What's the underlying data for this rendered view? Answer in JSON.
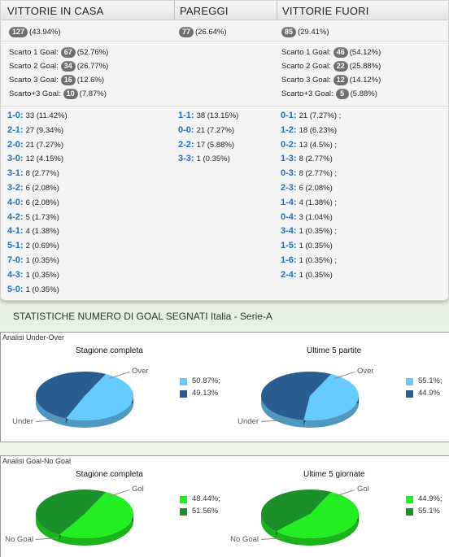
{
  "headers": [
    "VITTORIE IN CASA",
    "PAREGGI",
    "VITTORIE FUORI"
  ],
  "totals": [
    {
      "count": "127",
      "pct": "(43.94%)"
    },
    {
      "count": "77",
      "pct": "(26.64%)"
    },
    {
      "count": "85",
      "pct": "(29.41%)"
    }
  ],
  "margins": {
    "home": [
      {
        "label": "Scarto 1 Goal:",
        "count": "67",
        "pct": "(52.76%)"
      },
      {
        "label": "Scarto 2 Goal:",
        "count": "34",
        "pct": "(26.77%)"
      },
      {
        "label": "Scarto 3 Goal:",
        "count": "16",
        "pct": "(12.6%)"
      },
      {
        "label": "Scarto+3 Goal:",
        "count": "10",
        "pct": "(7.87%)"
      }
    ],
    "away": [
      {
        "label": "Scarto 1 Goal:",
        "count": "46",
        "pct": "(54.12%)"
      },
      {
        "label": "Scarto 2 Goal:",
        "count": "22",
        "pct": "(25.88%)"
      },
      {
        "label": "Scarto 3 Goal:",
        "count": "12",
        "pct": "(14.12%)"
      },
      {
        "label": "Scarto+3 Goal:",
        "count": "5",
        "pct": "(5.88%)"
      }
    ]
  },
  "scores": {
    "home": [
      {
        "s": "1-0:",
        "v": "33 (11.42%)"
      },
      {
        "s": "2-1:",
        "v": "27 (9.34%)"
      },
      {
        "s": "2-0:",
        "v": "21 (7.27%)"
      },
      {
        "s": "3-0:",
        "v": "12 (4.15%)"
      },
      {
        "s": "3-1:",
        "v": "8 (2.77%)"
      },
      {
        "s": "3-2:",
        "v": "6 (2.08%)"
      },
      {
        "s": "4-0:",
        "v": "6 (2.08%)"
      },
      {
        "s": "4-2:",
        "v": "5 (1.73%)"
      },
      {
        "s": "4-1:",
        "v": "4 (1.38%)"
      },
      {
        "s": "5-1:",
        "v": "2 (0.69%)"
      },
      {
        "s": "7-0:",
        "v": "1 (0.35%)"
      },
      {
        "s": "4-3:",
        "v": "1 (0.35%)"
      },
      {
        "s": "5-0:",
        "v": "1 (0.35%)"
      }
    ],
    "draw": [
      {
        "s": "1-1:",
        "v": "38 (13.15%)"
      },
      {
        "s": "0-0:",
        "v": "21 (7.27%)"
      },
      {
        "s": "2-2:",
        "v": "17 (5.88%)"
      },
      {
        "s": "3-3:",
        "v": "1 (0.35%)"
      }
    ],
    "away": [
      {
        "s": "0-1:",
        "v": "21 (7.27%) ;"
      },
      {
        "s": "1-2:",
        "v": "18 (6.23%)"
      },
      {
        "s": "0-2:",
        "v": "13 (4.5%) ;"
      },
      {
        "s": "1-3:",
        "v": "8 (2.77%)"
      },
      {
        "s": "0-3:",
        "v": "8 (2.77%) ;"
      },
      {
        "s": "2-3:",
        "v": "6 (2.08%)"
      },
      {
        "s": "1-4:",
        "v": "4 (1.38%) ;"
      },
      {
        "s": "0-4:",
        "v": "3 (1.04%)"
      },
      {
        "s": "3-4:",
        "v": "1 (0.35%) ;"
      },
      {
        "s": "1-5:",
        "v": "1 (0.35%)"
      },
      {
        "s": "1-6:",
        "v": "1 (0.35%) ;"
      },
      {
        "s": "2-4:",
        "v": "1 (0.35%)"
      }
    ]
  },
  "section_title": "STATISTICHE NUMERO DI GOAL SEGNATI Italia - Serie-A",
  "under_over": {
    "panel_title": "Analisi Under-Over",
    "left": {
      "subtitle": "Stagione completa",
      "top_label": "Over",
      "bottom_label": "Under",
      "legend": [
        "50.87%;",
        "49.13%"
      ],
      "values": [
        50.87,
        49.13
      ]
    },
    "right": {
      "subtitle": "Ultime 5 partite",
      "top_label": "Over",
      "bottom_label": "Under",
      "legend": [
        "55.1%;",
        "44.9%"
      ],
      "values": [
        55.1,
        44.9
      ]
    },
    "colors": [
      "#66ccff",
      "#2a5d8f"
    ]
  },
  "goal_nogoal": {
    "panel_title": "Analisi Goal-No Goal",
    "left": {
      "subtitle": "Stagione completa",
      "top_label": "Gol",
      "bottom_label": "No Goal",
      "legend": [
        "48.44%;",
        "51.56%"
      ],
      "values": [
        48.44,
        51.56
      ]
    },
    "right": {
      "subtitle": "Ultime 5 giornate",
      "top_label": "Gol",
      "bottom_label": "No Goal",
      "legend": [
        "44.9%;",
        "55.1%"
      ],
      "values": [
        44.9,
        55.1
      ]
    },
    "colors": [
      "#22ee22",
      "#1a8f2a"
    ]
  }
}
